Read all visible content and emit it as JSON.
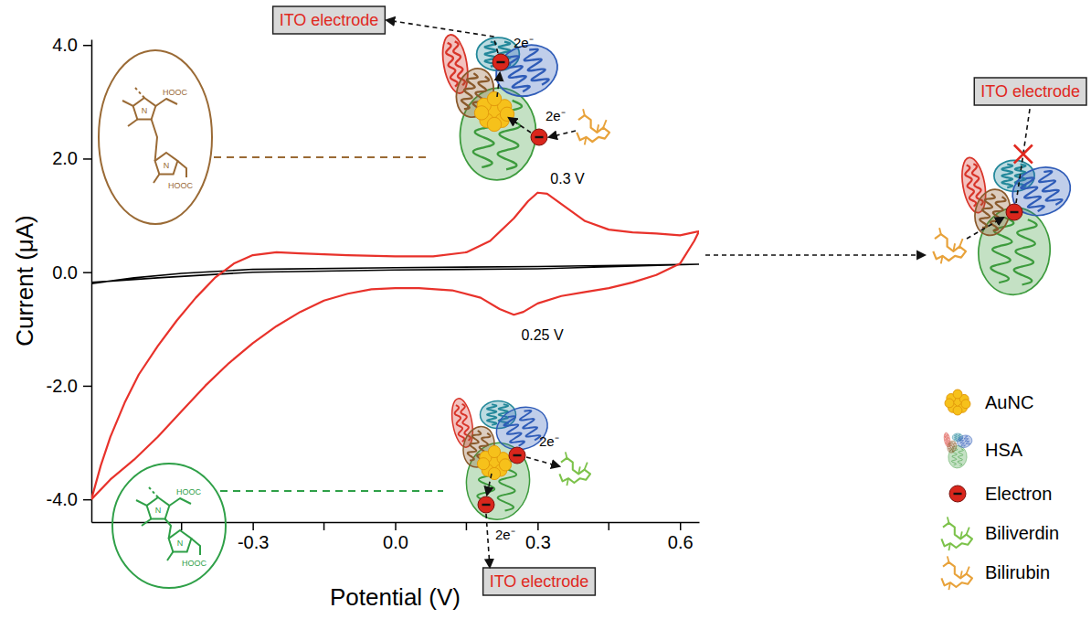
{
  "chart_data": {
    "type": "line",
    "x_label": "Potential (V)",
    "y_label": "Current (μA)",
    "xlim": [
      -0.64,
      0.64
    ],
    "ylim": [
      -4.4,
      4.1
    ],
    "xticks": [
      -0.3,
      {
        "value": 0,
        "label": "0.0"
      },
      0.3,
      0.6
    ],
    "xticks_minor": [
      -0.45,
      -0.15,
      0.15,
      0.45
    ],
    "yticks": [
      {
        "value": 4,
        "label": "4.0"
      },
      {
        "value": 2,
        "label": "2.0"
      },
      {
        "value": 0,
        "label": "0.0"
      },
      {
        "value": -2,
        "label": "-2.0"
      },
      {
        "value": -4,
        "label": "-4.0"
      }
    ],
    "series": [
      {
        "color": "#e8322b",
        "x": [
          -0.64,
          -0.62,
          -0.6,
          -0.57,
          -0.54,
          -0.5,
          -0.46,
          -0.42,
          -0.38,
          -0.34,
          -0.3,
          -0.25,
          -0.2,
          -0.1,
          0,
          0.08,
          0.15,
          0.2,
          0.25,
          0.28,
          0.3,
          0.32,
          0.35,
          0.4,
          0.45,
          0.5,
          0.55,
          0.6,
          0.64,
          0.63,
          0.6,
          0.55,
          0.5,
          0.45,
          0.4,
          0.35,
          0.3,
          0.27,
          0.25,
          0.22,
          0.18,
          0.12,
          0.05,
          0,
          -0.05,
          -0.1,
          -0.15,
          -0.2,
          -0.25,
          -0.3,
          -0.35,
          -0.4,
          -0.45,
          -0.5,
          -0.55,
          -0.6,
          -0.64
        ],
        "values": [
          -4,
          -3.4,
          -2.9,
          -2.3,
          -1.8,
          -1.3,
          -0.85,
          -0.45,
          -0.1,
          0.15,
          0.3,
          0.35,
          0.33,
          0.3,
          0.28,
          0.28,
          0.35,
          0.55,
          0.95,
          1.25,
          1.4,
          1.38,
          1.2,
          0.9,
          0.75,
          0.7,
          0.68,
          0.65,
          0.72,
          0.55,
          0.15,
          -0.05,
          -0.18,
          -0.28,
          -0.35,
          -0.42,
          -0.55,
          -0.7,
          -0.75,
          -0.65,
          -0.45,
          -0.32,
          -0.28,
          -0.28,
          -0.3,
          -0.38,
          -0.5,
          -0.7,
          -0.95,
          -1.25,
          -1.6,
          -2,
          -2.45,
          -2.9,
          -3.3,
          -3.65,
          -4
        ]
      },
      {
        "color": "#000000",
        "x": [
          -0.64,
          -0.55,
          -0.45,
          -0.3,
          0,
          0.3,
          0.64,
          0.3,
          0,
          -0.3,
          -0.5,
          -0.64
        ],
        "values": [
          -0.2,
          -0.1,
          -0.02,
          0.05,
          0.08,
          0.1,
          0.14,
          0.06,
          0.04,
          0,
          -0.1,
          -0.18
        ]
      }
    ],
    "annotations": [
      {
        "text": "0.3 V",
        "x": 0.3,
        "y": 1.4
      },
      {
        "text": "0.25 V",
        "x": 0.25,
        "y": -0.75
      }
    ]
  },
  "diagram": {
    "electrodes": [
      "ITO electrode",
      "ITO electrode",
      "ITO electrode"
    ],
    "transfers": [
      "2e⁻",
      "2e⁻",
      "2e⁻",
      "2e⁻"
    ],
    "key": [
      "AuNC",
      "HSA",
      "Electron",
      "Biliverdin",
      "Bilirubin"
    ],
    "bilirubin_structure": [
      "N",
      "N",
      "HOOC",
      "HOOC"
    ],
    "biliverdin_structure": [
      "N",
      "N",
      "HOOC",
      "HOOC"
    ]
  }
}
